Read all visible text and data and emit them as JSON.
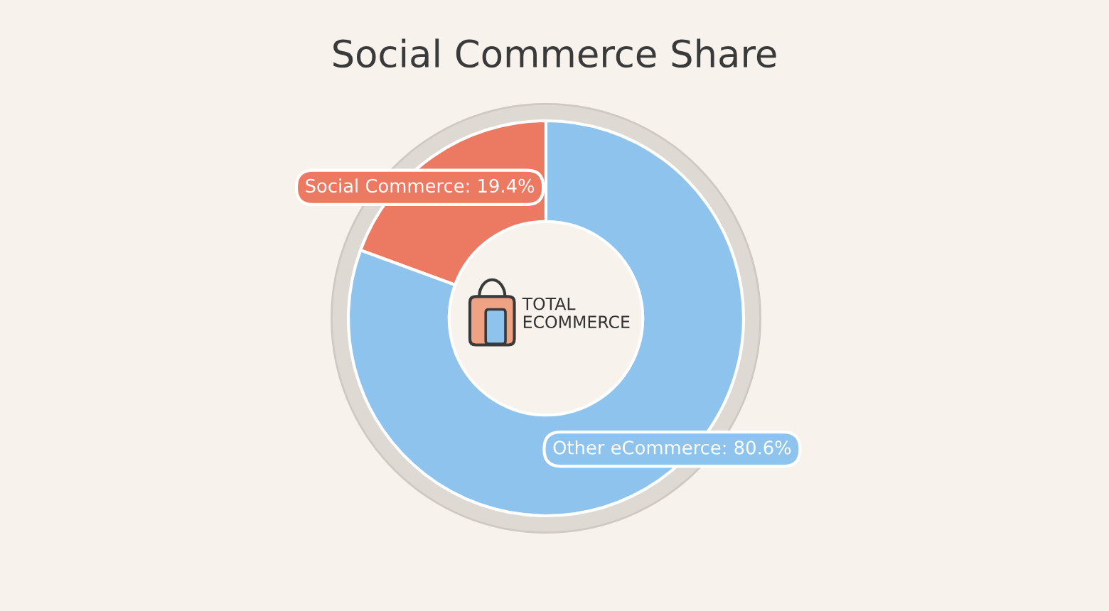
{
  "chart_data": {
    "type": "donut",
    "title": "Social Commerce Share",
    "categories": [
      "Social Commerce",
      "Other eCommerce"
    ],
    "values": [
      19.4,
      80.6
    ],
    "colors": [
      "#ec7a62",
      "#8dc3ec"
    ],
    "value_labels": [
      "19.4%",
      "80.6%"
    ],
    "annotations": [
      "TOTAL\nECOMMERCE"
    ]
  }
}
